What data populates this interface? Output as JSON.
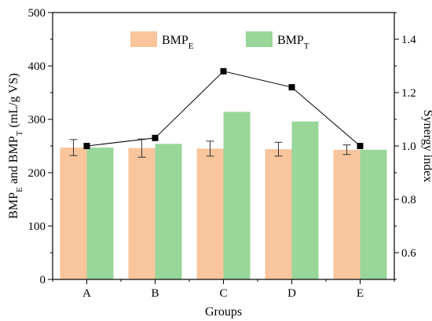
{
  "chart_data": {
    "type": "bar",
    "categories": [
      "A",
      "B",
      "C",
      "D",
      "E"
    ],
    "series": [
      {
        "name": "BMP_E",
        "legend_main": "BMP",
        "legend_sub": "E",
        "values": [
          247,
          246,
          245,
          244,
          243
        ],
        "error": [
          15,
          17,
          14,
          13,
          9
        ],
        "color": "#f8c59c",
        "axis": "left"
      },
      {
        "name": "BMP_T",
        "legend_main": "BMP",
        "legend_sub": "T",
        "values": [
          247,
          254,
          314,
          296,
          243
        ],
        "color": "#99d69a",
        "axis": "left"
      },
      {
        "name": "Synergy index",
        "type": "line",
        "values": [
          1.0,
          1.03,
          1.28,
          1.22,
          1.0
        ],
        "color": "#000000",
        "marker": "square",
        "axis": "right"
      }
    ],
    "xlabel": "Groups",
    "ylabel": {
      "parts": [
        {
          "text": "BMP",
          "sub": false
        },
        {
          "text": "E",
          "sub": true
        },
        {
          "text": " and BMP",
          "sub": false
        },
        {
          "text": "T",
          "sub": true
        },
        {
          "text": " (mL/g VS)",
          "sub": false
        }
      ]
    },
    "y2label": "Synergy index",
    "ylim": [
      0,
      500
    ],
    "y2lim": [
      0.5,
      1.5
    ],
    "yticks": [
      0,
      100,
      200,
      300,
      400,
      500
    ],
    "y2ticks": [
      0.6,
      0.8,
      1.0,
      1.2,
      1.4
    ],
    "y2tick_labels": [
      "0.6",
      "0.8",
      "1.0",
      "1.2",
      "1.4"
    ],
    "legend_position": "top-center",
    "grid": false
  }
}
